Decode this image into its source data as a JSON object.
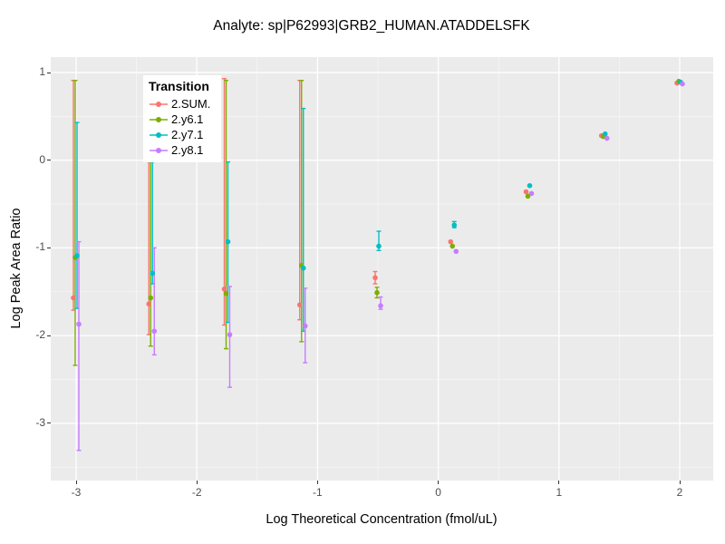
{
  "title": "Analyte: sp|P62993|GRB2_HUMAN.ATADDELSFK",
  "chart_data": {
    "type": "scatter",
    "title": "Analyte: sp|P62993|GRB2_HUMAN.ATADDELSFK",
    "xlabel": "Log Theoretical Concentration (fmol/uL)",
    "ylabel": "Log Peak Area Ratio",
    "xlim": [
      -3.21,
      2.28
    ],
    "ylim": [
      -3.6,
      1.18
    ],
    "x_ticks": [
      -3,
      -2,
      -1,
      0,
      1,
      2
    ],
    "y_ticks": [
      1,
      0,
      -1,
      -2,
      -3
    ],
    "x_minor": [
      -2.5,
      -1.5,
      -0.5,
      0.5,
      1.5
    ],
    "y_minor": [
      0.5,
      -0.5,
      -1.5,
      -2.5,
      -3.5
    ],
    "grid": true,
    "panel_bg": "#EBEBEB",
    "grid_color": "#FFFFFF",
    "tick_text_color": "#4D4D4D",
    "legend_title": "Transition",
    "legend_position": "inside-top-left",
    "series": [
      {
        "name": "2.SUM.",
        "color": "#F8766D",
        "points": [
          {
            "x": -3,
            "y": -1.57,
            "lo": -1.71,
            "hi": 0.91
          },
          {
            "x": -2.375,
            "y": -1.64,
            "lo": -1.99,
            "hi": -0.02
          },
          {
            "x": -1.75,
            "y": -1.47,
            "lo": -1.88,
            "hi": 0.93
          },
          {
            "x": -1.125,
            "y": -1.65,
            "lo": -1.82,
            "hi": 0.91
          },
          {
            "x": -0.5,
            "y": -1.34,
            "lo": -1.41,
            "hi": -1.27
          },
          {
            "x": 0.125,
            "y": -0.93,
            "lo": null,
            "hi": null
          },
          {
            "x": 0.75,
            "y": -0.36,
            "lo": null,
            "hi": null
          },
          {
            "x": 1.375,
            "y": 0.28,
            "lo": null,
            "hi": null
          },
          {
            "x": 2,
            "y": 0.88,
            "lo": null,
            "hi": null
          }
        ]
      },
      {
        "name": "2.y6.1",
        "color": "#7CAE00",
        "points": [
          {
            "x": -3,
            "y": -1.11,
            "lo": -2.34,
            "hi": 0.91
          },
          {
            "x": -2.375,
            "y": -1.57,
            "lo": -2.12,
            "hi": -0.02
          },
          {
            "x": -1.75,
            "y": -1.52,
            "lo": -2.15,
            "hi": 0.91
          },
          {
            "x": -1.125,
            "y": -1.2,
            "lo": -2.07,
            "hi": 0.91
          },
          {
            "x": -0.5,
            "y": -1.51,
            "lo": -1.57,
            "hi": -1.45
          },
          {
            "x": 0.125,
            "y": -0.98,
            "lo": null,
            "hi": null
          },
          {
            "x": 0.75,
            "y": -0.41,
            "lo": null,
            "hi": null
          },
          {
            "x": 1.375,
            "y": 0.27,
            "lo": null,
            "hi": null
          },
          {
            "x": 2,
            "y": 0.9,
            "lo": null,
            "hi": null
          }
        ]
      },
      {
        "name": "2.y7.1",
        "color": "#00BFC4",
        "points": [
          {
            "x": -3,
            "y": -1.09,
            "lo": -1.69,
            "hi": 0.43
          },
          {
            "x": -2.375,
            "y": -1.29,
            "lo": -1.41,
            "hi": -0.02
          },
          {
            "x": -1.75,
            "y": -0.93,
            "lo": -1.85,
            "hi": -0.02
          },
          {
            "x": -1.125,
            "y": -1.23,
            "lo": -1.95,
            "hi": 0.59
          },
          {
            "x": -0.5,
            "y": -0.98,
            "lo": -1.03,
            "hi": -0.81
          },
          {
            "x": 0.125,
            "y": -0.74,
            "lo": -0.77,
            "hi": -0.7
          },
          {
            "x": 0.75,
            "y": -0.29,
            "lo": null,
            "hi": null
          },
          {
            "x": 1.375,
            "y": 0.3,
            "lo": null,
            "hi": null
          },
          {
            "x": 2,
            "y": 0.89,
            "lo": null,
            "hi": null
          }
        ]
      },
      {
        "name": "2.y8.1",
        "color": "#C77CFF",
        "points": [
          {
            "x": -3,
            "y": -1.87,
            "lo": -3.31,
            "hi": -0.93
          },
          {
            "x": -2.375,
            "y": -1.95,
            "lo": -2.22,
            "hi": -1.0
          },
          {
            "x": -1.75,
            "y": -1.99,
            "lo": -2.59,
            "hi": -1.44
          },
          {
            "x": -1.125,
            "y": -1.89,
            "lo": -2.31,
            "hi": -1.46
          },
          {
            "x": -0.5,
            "y": -1.66,
            "lo": -1.7,
            "hi": -1.56
          },
          {
            "x": 0.125,
            "y": -1.04,
            "lo": null,
            "hi": null
          },
          {
            "x": 0.75,
            "y": -0.38,
            "lo": null,
            "hi": null
          },
          {
            "x": 1.375,
            "y": 0.25,
            "lo": null,
            "hi": null
          },
          {
            "x": 2,
            "y": 0.87,
            "lo": null,
            "hi": null
          }
        ]
      }
    ]
  }
}
